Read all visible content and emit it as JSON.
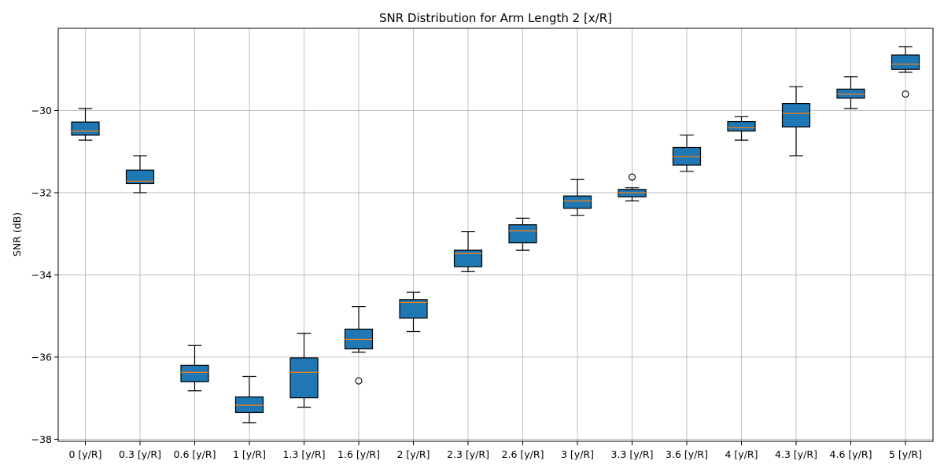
{
  "chart_data": {
    "type": "box",
    "title": "SNR Distribution for Arm Length 2 [x/R]",
    "xlabel": "",
    "ylabel": "SNR (dB)",
    "ylim": [
      -38.05,
      -28.0
    ],
    "yticks": [
      -30,
      -32,
      -34,
      -36,
      -38
    ],
    "yticklabels": [
      "−30",
      "−32",
      "−34",
      "−36",
      "−38"
    ],
    "grid": true,
    "colors": {
      "box_fill": "#1f77b4",
      "median": "#ff7f0e",
      "grid": "#b0b0b0",
      "edge": "#000000"
    },
    "categories": [
      "0 [y/R]",
      "0.3 [y/R]",
      "0.6 [y/R]",
      "1 [y/R]",
      "1.3 [y/R]",
      "1.6 [y/R]",
      "2 [y/R]",
      "2.3 [y/R]",
      "2.6 [y/R]",
      "3 [y/R]",
      "3.3 [y/R]",
      "3.6 [y/R]",
      "4 [y/R]",
      "4.3 [y/R]",
      "4.6 [y/R]",
      "5 [y/R]"
    ],
    "boxes": [
      {
        "whislo": -30.72,
        "q1": -30.6,
        "med": -30.5,
        "q3": -30.28,
        "whishi": -29.95,
        "fliers": []
      },
      {
        "whislo": -32.0,
        "q1": -31.78,
        "med": -31.72,
        "q3": -31.45,
        "whishi": -31.1,
        "fliers": []
      },
      {
        "whislo": -36.82,
        "q1": -36.6,
        "med": -36.37,
        "q3": -36.2,
        "whishi": -35.72,
        "fliers": []
      },
      {
        "whislo": -37.6,
        "q1": -37.35,
        "med": -37.17,
        "q3": -36.97,
        "whishi": -36.47,
        "fliers": []
      },
      {
        "whislo": -37.22,
        "q1": -36.99,
        "med": -36.37,
        "q3": -36.02,
        "whishi": -35.42,
        "fliers": []
      },
      {
        "whislo": -35.88,
        "q1": -35.8,
        "med": -35.57,
        "q3": -35.32,
        "whishi": -34.77,
        "fliers": [
          -36.58
        ]
      },
      {
        "whislo": -35.38,
        "q1": -35.05,
        "med": -34.67,
        "q3": -34.6,
        "whishi": -34.42,
        "fliers": []
      },
      {
        "whislo": -33.92,
        "q1": -33.8,
        "med": -33.48,
        "q3": -33.4,
        "whishi": -32.95,
        "fliers": []
      },
      {
        "whislo": -33.4,
        "q1": -33.22,
        "med": -32.93,
        "q3": -32.78,
        "whishi": -32.62,
        "fliers": []
      },
      {
        "whislo": -32.55,
        "q1": -32.38,
        "med": -32.2,
        "q3": -32.08,
        "whishi": -31.68,
        "fliers": []
      },
      {
        "whislo": -32.2,
        "q1": -32.1,
        "med": -32.0,
        "q3": -31.92,
        "whishi": -31.88,
        "fliers": [
          -31.62
        ]
      },
      {
        "whislo": -31.48,
        "q1": -31.33,
        "med": -31.12,
        "q3": -30.9,
        "whishi": -30.6,
        "fliers": []
      },
      {
        "whislo": -30.72,
        "q1": -30.5,
        "med": -30.42,
        "q3": -30.27,
        "whishi": -30.15,
        "fliers": []
      },
      {
        "whislo": -31.1,
        "q1": -30.4,
        "med": -30.07,
        "q3": -29.83,
        "whishi": -29.42,
        "fliers": []
      },
      {
        "whislo": -29.95,
        "q1": -29.7,
        "med": -29.6,
        "q3": -29.48,
        "whishi": -29.18,
        "fliers": []
      },
      {
        "whislo": -29.07,
        "q1": -29.0,
        "med": -28.87,
        "q3": -28.65,
        "whishi": -28.45,
        "fliers": [
          -29.6
        ]
      }
    ]
  }
}
